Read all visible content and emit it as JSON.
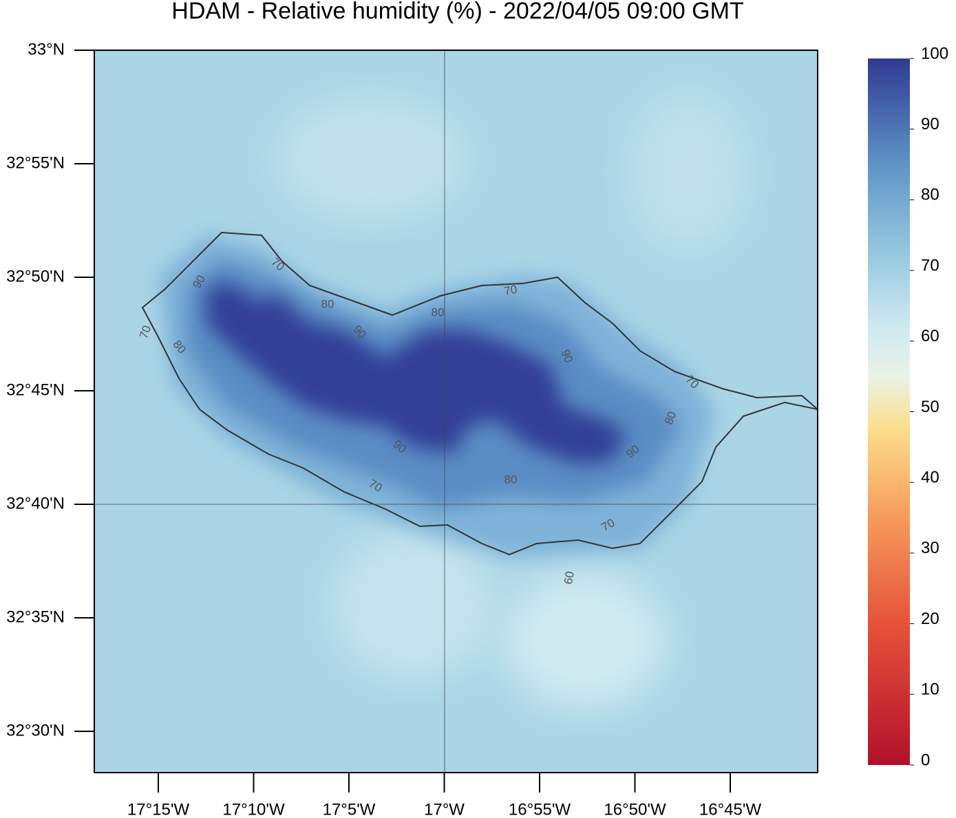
{
  "map": {
    "title": "HDAM - Relative humidity (%)  -  2022/04/05  09:00 GMT",
    "lat_labels": [
      "33°N",
      "32°55'N",
      "32°50'N",
      "32°45'N",
      "32°40'N",
      "32°35'N",
      "32°30'N"
    ],
    "lon_labels": [
      "17°15'W",
      "17°10'W",
      "17°5'W",
      "17°W",
      "16°55'W",
      "16°50'W",
      "16°45'W"
    ],
    "contour_labels": [
      "90",
      "70",
      "80",
      "90",
      "80",
      "70",
      "90",
      "70",
      "80",
      "90",
      "80",
      "90",
      "70",
      "70",
      "80",
      "70",
      "60"
    ],
    "colorbar": {
      "range": [
        0,
        100
      ],
      "ticks": [
        0,
        10,
        20,
        30,
        40,
        50,
        60,
        70,
        80,
        90,
        100
      ]
    }
  }
}
